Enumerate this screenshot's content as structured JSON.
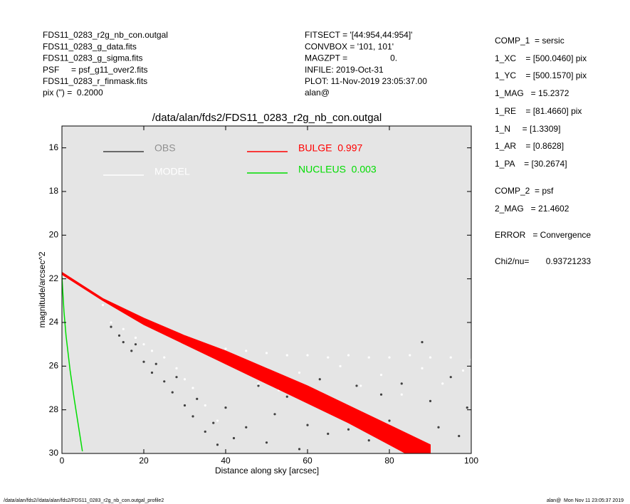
{
  "header": {
    "left": [
      "FDS11_0283_r2g_nb_con.outgal",
      "FDS11_0283_g_data.fits",
      "FDS11_0283_g_sigma.fits",
      "PSF     = psf_g11_over2.fits",
      "FDS11_0283_r_finmask.fits",
      "pix (\") =  0.2000"
    ],
    "middle": [
      "FITSECT = '[44:954,44:954]'",
      "CONVBOX = '101, 101'",
      "MAGZPT =                  0.",
      "INFILE: 2019-Oct-31",
      "PLOT: 11-Nov-2019 23:05:37.00",
      "alan@"
    ],
    "right": [
      "COMP_1  = sersic",
      "1_XC    = [500.0460] pix",
      "1_YC    = [500.1570] pix",
      "1_MAG   = 15.2372",
      "1_RE    = [81.4660] pix",
      "1_N     = [1.3309]",
      "1_AR    = [0.8628]",
      "1_PA    = [30.2674]",
      "COMP_2  = psf",
      "2_MAG   = 21.4602",
      "ERROR   = Convergence",
      "Chi2/nu=       0.93721233"
    ]
  },
  "footer": {
    "left": "/data/alan/fds2//data/alan/fds2/FDS11_0283_r2g_nb_con.outgal_profile2",
    "right": "alan@  Mon Nov 11 23:05:37 2019"
  },
  "chart_data": {
    "type": "scatter",
    "title": "/data/alan/fds2/FDS11_0283_r2g_nb_con.outgal",
    "xlabel": "Distance along sky [arcsec]",
    "ylabel": "magnitude/arcsec^2",
    "xlim": [
      0,
      100
    ],
    "ylim": [
      30,
      15
    ],
    "xticks": [
      0,
      20,
      40,
      60,
      80,
      100
    ],
    "yticks": [
      16,
      18,
      20,
      22,
      24,
      26,
      28,
      30
    ],
    "grid": false,
    "background": "#e5e5e5",
    "series": [
      {
        "name": "OBS",
        "color": "#404040",
        "kind": "points",
        "x": [
          12,
          14,
          15,
          17,
          18,
          20,
          22,
          23,
          25,
          27,
          28,
          30,
          32,
          33,
          35,
          37,
          38,
          40,
          42,
          45,
          48,
          50,
          52,
          55,
          58,
          60,
          63,
          65,
          68,
          70,
          72,
          75,
          78,
          80,
          83,
          85,
          88,
          90,
          92,
          95,
          97,
          99
        ],
        "values": [
          24.2,
          24.6,
          24.9,
          25.3,
          25.0,
          25.8,
          26.3,
          25.9,
          26.7,
          27.2,
          26.5,
          27.8,
          28.3,
          27.5,
          29.0,
          28.6,
          29.6,
          27.9,
          29.3,
          28.8,
          26.9,
          29.5,
          28.2,
          27.4,
          29.8,
          28.7,
          26.6,
          29.1,
          27.8,
          28.9,
          26.9,
          29.4,
          27.3,
          28.5,
          26.8,
          29.7,
          24.9,
          27.6,
          28.8,
          26.5,
          29.2,
          27.9
        ]
      },
      {
        "name": "MODEL",
        "color": "#ffffff",
        "kind": "points",
        "x": [
          10,
          12,
          15,
          18,
          20,
          22,
          25,
          28,
          30,
          32,
          35,
          38,
          40,
          43,
          45,
          48,
          50,
          53,
          55,
          58,
          60,
          63,
          65,
          68,
          70,
          73,
          75,
          78,
          80,
          83,
          85,
          88,
          90,
          93,
          95,
          98,
          100
        ],
        "values": [
          23.2,
          24.0,
          24.3,
          24.7,
          25.0,
          25.3,
          25.6,
          26.1,
          26.6,
          27.0,
          27.8,
          28.5,
          25.2,
          26.0,
          25.3,
          26.8,
          25.4,
          27.1,
          25.5,
          26.3,
          25.5,
          27.2,
          25.6,
          26.0,
          25.5,
          26.9,
          25.6,
          26.4,
          25.6,
          27.3,
          25.5,
          26.1,
          25.6,
          26.8,
          25.6,
          26.2,
          25.7
        ]
      },
      {
        "name": "BULGE  0.997",
        "color": "#ff0000",
        "kind": "band",
        "x": [
          0,
          10,
          20,
          30,
          40,
          50,
          60,
          70,
          80,
          90
        ],
        "values": [
          21.7,
          22.9,
          23.8,
          24.6,
          25.3,
          26.1,
          26.9,
          27.8,
          28.7,
          29.6
        ],
        "values_lower": [
          21.8,
          23.0,
          24.1,
          25.0,
          25.9,
          26.8,
          27.7,
          28.6,
          29.6,
          30.6
        ]
      },
      {
        "name": "NUCLEUS  0.003",
        "color": "#00dd00",
        "kind": "line",
        "x": [
          0,
          0.5,
          1,
          2,
          3,
          4,
          5
        ],
        "values": [
          21.9,
          23.5,
          24.6,
          26.2,
          27.5,
          28.7,
          29.9
        ]
      }
    ]
  }
}
